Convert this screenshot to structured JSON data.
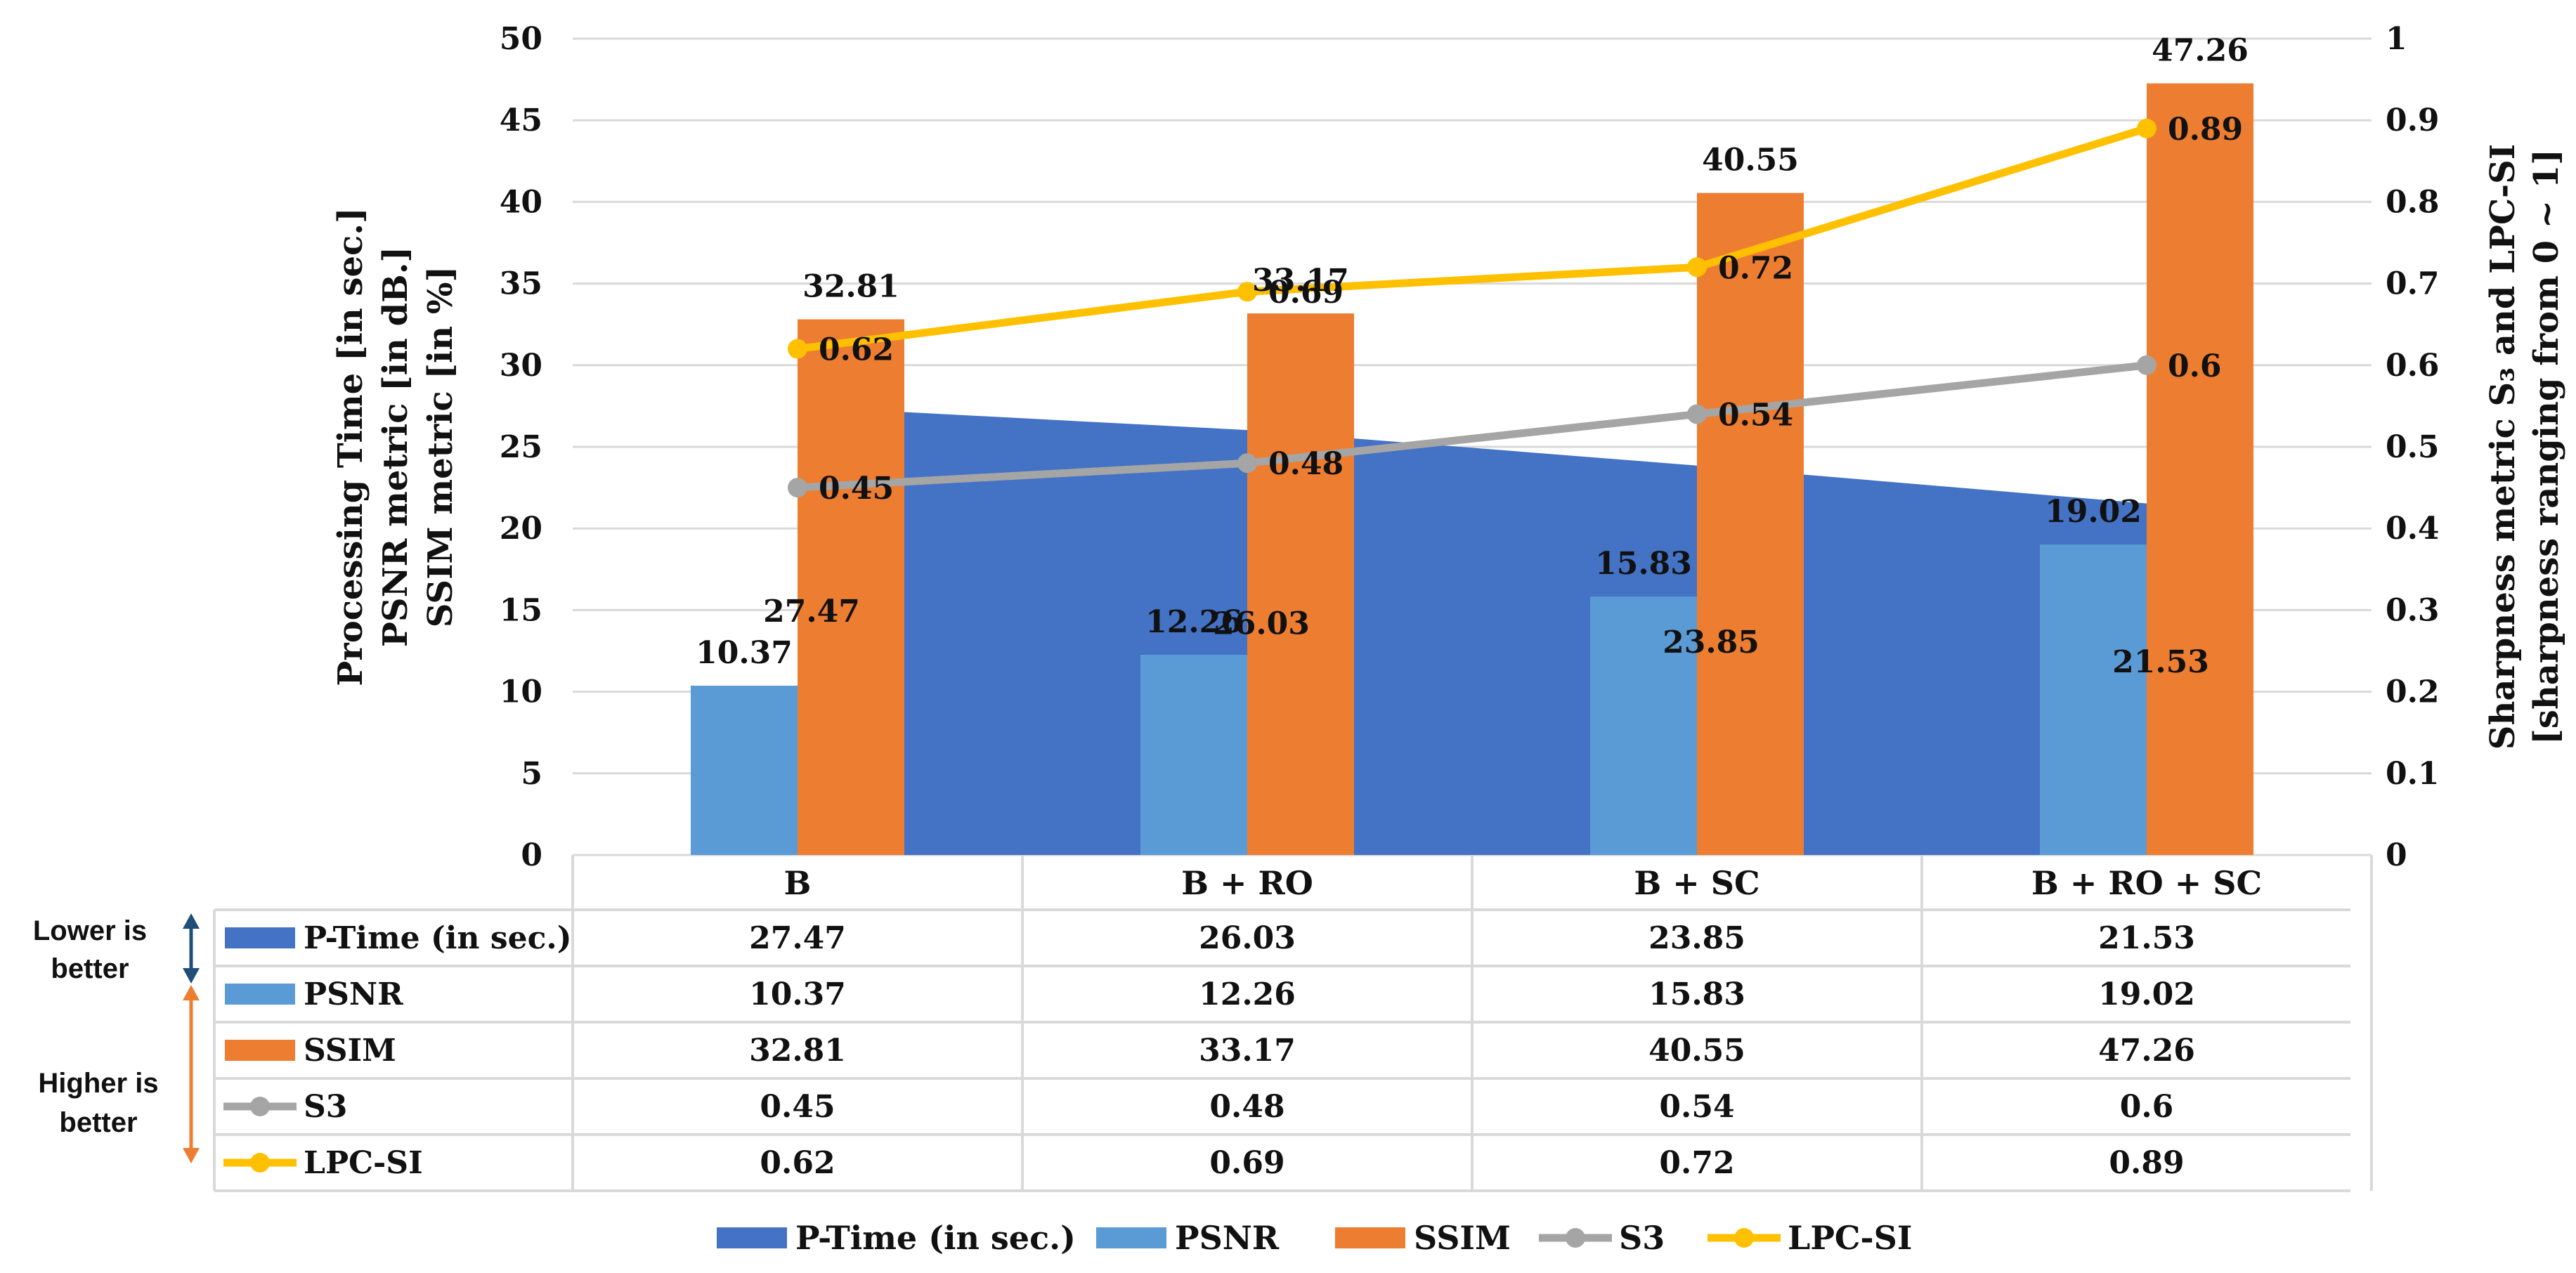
{
  "chart_data": {
    "type": "bar",
    "categories": [
      "B",
      "B + RO",
      "B + SC",
      "B + RO + SC"
    ],
    "series": [
      {
        "name": "P-Time (in sec.)",
        "kind": "area",
        "axis": "left",
        "color": "#4472C4",
        "values": [
          27.47,
          26.03,
          23.85,
          21.53
        ]
      },
      {
        "name": "PSNR",
        "kind": "bar",
        "axis": "left",
        "color": "#5B9BD5",
        "values": [
          10.37,
          12.26,
          15.83,
          19.02
        ]
      },
      {
        "name": "SSIM",
        "kind": "bar",
        "axis": "left",
        "color": "#ED7D31",
        "values": [
          32.81,
          33.17,
          40.55,
          47.26
        ]
      },
      {
        "name": "S3",
        "kind": "line",
        "axis": "right",
        "color": "#A5A5A5",
        "values": [
          0.45,
          0.48,
          0.54,
          0.6
        ]
      },
      {
        "name": "LPC-SI",
        "kind": "line",
        "axis": "right",
        "color": "#FFC000",
        "values": [
          0.62,
          0.69,
          0.72,
          0.89
        ]
      }
    ],
    "left_axis": {
      "title_lines": [
        "Processing Time [in sec.]",
        "PSNR metric [in dB.]",
        "SSIM metric [in %]"
      ],
      "ylim": [
        0,
        50
      ],
      "ticks": [
        "0",
        "5",
        "10",
        "15",
        "20",
        "25",
        "30",
        "35",
        "40",
        "45",
        "50"
      ]
    },
    "right_axis": {
      "title_lines": [
        "Sharpness metric S₃ and LPC-SI",
        "[sharpness ranging from 0 ~ 1]"
      ],
      "ylim": [
        0,
        1
      ],
      "ticks": [
        "0",
        "0.1",
        "0.2",
        "0.3",
        "0.4",
        "0.5",
        "0.6",
        "0.7",
        "0.8",
        "0.9",
        "1"
      ]
    },
    "data_labels": {
      "P-Time (in sec.)": [
        "27.47",
        "26.03",
        "23.85",
        "21.53"
      ],
      "PSNR": [
        "10.37",
        "12.26",
        "15.83",
        "19.02"
      ],
      "SSIM": [
        "32.81",
        "33.17",
        "40.55",
        "47.26"
      ],
      "S3": [
        "0.45",
        "0.48",
        "0.54",
        "0.6"
      ],
      "LPC-SI": [
        "0.62",
        "0.69",
        "0.72",
        "0.89"
      ]
    },
    "table": {
      "rows": [
        {
          "label": "P-Time (in sec.)",
          "values": [
            "27.47",
            "26.03",
            "23.85",
            "21.53"
          ]
        },
        {
          "label": "PSNR",
          "values": [
            "10.37",
            "12.26",
            "15.83",
            "19.02"
          ]
        },
        {
          "label": "SSIM",
          "values": [
            "32.81",
            "33.17",
            "40.55",
            "47.26"
          ]
        },
        {
          "label": "S3",
          "values": [
            "0.45",
            "0.48",
            "0.54",
            "0.6"
          ]
        },
        {
          "label": "LPC-SI",
          "values": [
            "0.62",
            "0.69",
            "0.72",
            "0.89"
          ]
        }
      ]
    },
    "side_notes": {
      "lower": [
        "Lower is",
        "better"
      ],
      "higher": [
        "Higher is",
        "better"
      ],
      "lower_color": "#1F4E79",
      "higher_color": "#ED7D31"
    },
    "legend": [
      "P-Time (in sec.)",
      "PSNR",
      "SSIM",
      "S3",
      "LPC-SI"
    ],
    "grid": true,
    "legend_position": "bottom"
  }
}
